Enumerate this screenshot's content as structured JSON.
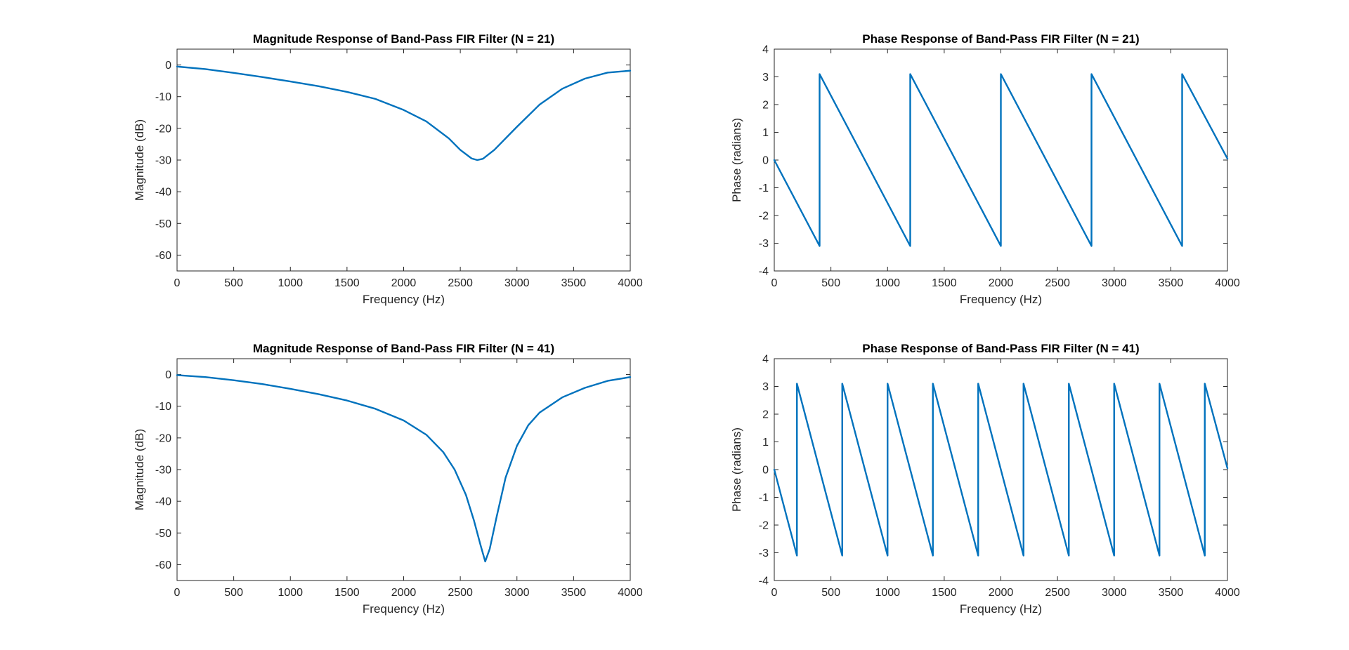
{
  "chart_data": [
    {
      "type": "line",
      "title": "Magnitude Response of Band-Pass FIR Filter (N = 21)",
      "xlabel": "Frequency (Hz)",
      "ylabel": "Magnitude (dB)",
      "xlim": [
        0,
        4000
      ],
      "ylim": [
        -65,
        5
      ],
      "xticks": [
        0,
        500,
        1000,
        1500,
        2000,
        2500,
        3000,
        3500,
        4000
      ],
      "yticks": [
        -60,
        -50,
        -40,
        -30,
        -20,
        -10,
        0
      ],
      "grid": false,
      "series": [
        {
          "color": "#0072BD",
          "x": [
            0,
            250,
            500,
            750,
            1000,
            1250,
            1500,
            1750,
            2000,
            2200,
            2400,
            2500,
            2600,
            2650,
            2700,
            2800,
            3000,
            3200,
            3400,
            3600,
            3800,
            4000
          ],
          "y": [
            -0.5,
            -1.3,
            -2.5,
            -3.8,
            -5.2,
            -6.7,
            -8.5,
            -10.7,
            -14.2,
            -17.8,
            -23.2,
            -26.8,
            -29.5,
            -30,
            -29.6,
            -26.8,
            -19.5,
            -12.5,
            -7.5,
            -4.3,
            -2.4,
            -1.8
          ]
        }
      ]
    },
    {
      "type": "line",
      "title": "Phase Response of Band-Pass FIR Filter (N = 21)",
      "xlabel": "Frequency (Hz)",
      "ylabel": "Phase (radians)",
      "xlim": [
        0,
        4000
      ],
      "ylim": [
        -4,
        4
      ],
      "xticks": [
        0,
        500,
        1000,
        1500,
        2000,
        2500,
        3000,
        3500,
        4000
      ],
      "yticks": [
        -4,
        -3,
        -2,
        -1,
        0,
        1,
        2,
        3,
        4
      ],
      "grid": false,
      "series": [
        {
          "color": "#0072BD",
          "x": [
            0,
            400,
            400,
            1200,
            1200,
            2000,
            2000,
            2800,
            2800,
            3600,
            3600,
            4000
          ],
          "y": [
            0,
            -3.1,
            3.1,
            -3.1,
            3.1,
            -3.1,
            3.1,
            -3.1,
            3.1,
            -3.1,
            3.1,
            0.05
          ]
        }
      ]
    },
    {
      "type": "line",
      "title": "Magnitude Response of Band-Pass FIR Filter (N = 41)",
      "xlabel": "Frequency (Hz)",
      "ylabel": "Magnitude (dB)",
      "xlim": [
        0,
        4000
      ],
      "ylim": [
        -65,
        5
      ],
      "xticks": [
        0,
        500,
        1000,
        1500,
        2000,
        2500,
        3000,
        3500,
        4000
      ],
      "yticks": [
        -60,
        -50,
        -40,
        -30,
        -20,
        -10,
        0
      ],
      "grid": false,
      "series": [
        {
          "color": "#0072BD",
          "x": [
            0,
            250,
            500,
            750,
            1000,
            1250,
            1500,
            1750,
            2000,
            2200,
            2350,
            2450,
            2550,
            2620,
            2680,
            2720,
            2760,
            2820,
            2900,
            3000,
            3100,
            3200,
            3400,
            3600,
            3800,
            4000
          ],
          "y": [
            -0.2,
            -0.8,
            -1.8,
            -3,
            -4.5,
            -6.2,
            -8.2,
            -10.8,
            -14.5,
            -19,
            -24.5,
            -30,
            -38,
            -46,
            -54,
            -59,
            -55,
            -45,
            -32.5,
            -22.5,
            -16,
            -12,
            -7.2,
            -4.2,
            -2,
            -0.8
          ]
        }
      ]
    },
    {
      "type": "line",
      "title": "Phase Response of Band-Pass FIR Filter (N = 41)",
      "xlabel": "Frequency (Hz)",
      "ylabel": "Phase (radians)",
      "xlim": [
        0,
        4000
      ],
      "ylim": [
        -4,
        4
      ],
      "xticks": [
        0,
        500,
        1000,
        1500,
        2000,
        2500,
        3000,
        3500,
        4000
      ],
      "yticks": [
        -4,
        -3,
        -2,
        -1,
        0,
        1,
        2,
        3,
        4
      ],
      "grid": false,
      "series": [
        {
          "color": "#0072BD",
          "x": [
            0,
            200,
            200,
            600,
            600,
            1000,
            1000,
            1400,
            1400,
            1800,
            1800,
            2200,
            2200,
            2600,
            2600,
            3000,
            3000,
            3400,
            3400,
            3800,
            3800,
            4000
          ],
          "y": [
            0,
            -3.1,
            3.1,
            -3.1,
            3.1,
            -3.1,
            3.1,
            -3.1,
            3.1,
            -3.1,
            3.1,
            -3.1,
            3.1,
            -3.1,
            3.1,
            -3.1,
            3.1,
            -3.1,
            3.1,
            -3.1,
            3.1,
            0.05
          ]
        }
      ]
    }
  ]
}
